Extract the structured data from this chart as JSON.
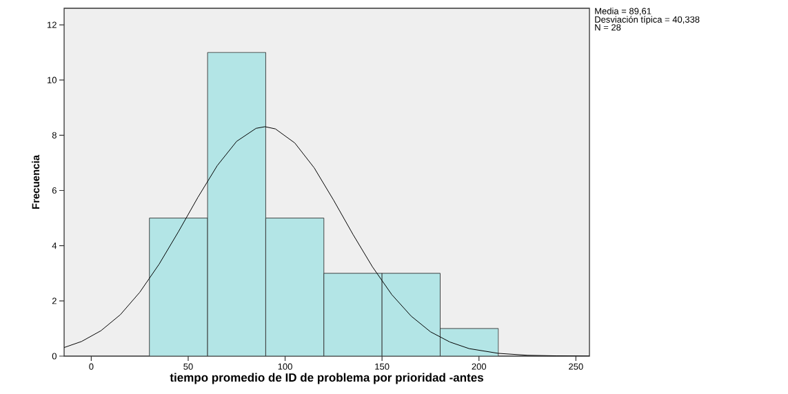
{
  "chart_data": {
    "type": "histogram",
    "xlabel": "tiempo promedio de ID de problema por prioridad -antes",
    "ylabel": "Frecuencia",
    "annotations": [
      "Media = 89,61",
      "Desviación típica = 40,338",
      "N = 28"
    ],
    "series": [
      {
        "type": "histogram",
        "bins": [
          30,
          60,
          90,
          120,
          150,
          180,
          210
        ],
        "values": [
          5,
          11,
          5,
          3,
          3,
          1
        ],
        "color": "#b3e5e6"
      },
      {
        "type": "line",
        "x": [
          -14,
          -5,
          5,
          15,
          25,
          35,
          45,
          55,
          65,
          75,
          85,
          89.61,
          95,
          105,
          115,
          125,
          135,
          145,
          155,
          165,
          175,
          185,
          195,
          210,
          225,
          240,
          257
        ],
        "values": [
          0.31,
          0.53,
          0.92,
          1.5,
          2.31,
          3.33,
          4.51,
          5.75,
          6.9,
          7.78,
          8.25,
          8.31,
          8.23,
          7.72,
          6.82,
          5.65,
          4.41,
          3.24,
          2.23,
          1.45,
          0.88,
          0.51,
          0.27,
          0.1,
          0.03,
          0.01,
          0
        ],
        "color": "#000000"
      }
    ],
    "xlim": [
      -14,
      257
    ],
    "ylim": [
      0,
      12.6
    ],
    "xticks": [
      0,
      50,
      100,
      150,
      200,
      250
    ],
    "yticks": [
      0,
      2,
      4,
      6,
      8,
      10,
      12
    ]
  }
}
